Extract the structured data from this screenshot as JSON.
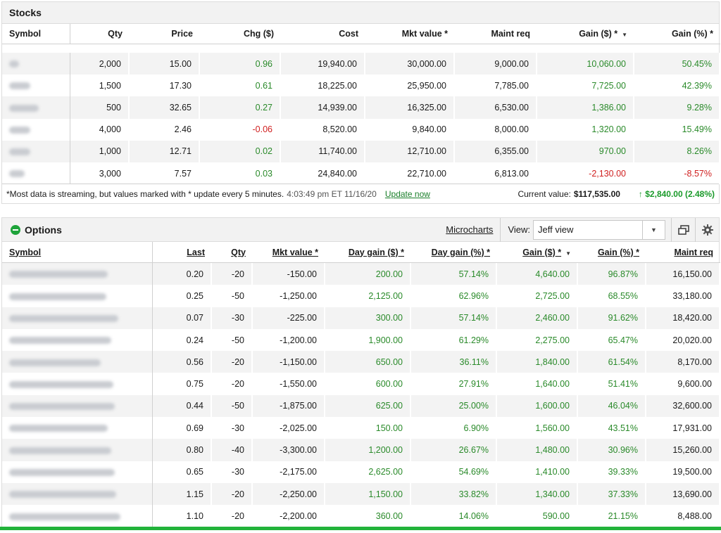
{
  "stocks": {
    "title": "Stocks",
    "columns": [
      "Symbol",
      "Qty",
      "Price",
      "Chg ($)",
      "Cost",
      "Mkt value *",
      "Maint req",
      "Gain ($) *",
      "Gain (%) *"
    ],
    "sort_caret": "▼",
    "rows": [
      {
        "qty": "2,000",
        "price": "15.00",
        "chg": "0.96",
        "chg_sign": "pos",
        "cost": "19,940.00",
        "mkt": "30,000.00",
        "maint": "9,000.00",
        "gain": "10,060.00",
        "gain_sign": "pos",
        "gainpct": "50.45%",
        "gainpct_sign": "pos"
      },
      {
        "qty": "1,500",
        "price": "17.30",
        "chg": "0.61",
        "chg_sign": "pos",
        "cost": "18,225.00",
        "mkt": "25,950.00",
        "maint": "7,785.00",
        "gain": "7,725.00",
        "gain_sign": "pos",
        "gainpct": "42.39%",
        "gainpct_sign": "pos"
      },
      {
        "qty": "500",
        "price": "32.65",
        "chg": "0.27",
        "chg_sign": "pos",
        "cost": "14,939.00",
        "mkt": "16,325.00",
        "maint": "6,530.00",
        "gain": "1,386.00",
        "gain_sign": "pos",
        "gainpct": "9.28%",
        "gainpct_sign": "pos"
      },
      {
        "qty": "4,000",
        "price": "2.46",
        "chg": "-0.06",
        "chg_sign": "neg",
        "cost": "8,520.00",
        "mkt": "9,840.00",
        "maint": "8,000.00",
        "gain": "1,320.00",
        "gain_sign": "pos",
        "gainpct": "15.49%",
        "gainpct_sign": "pos"
      },
      {
        "qty": "1,000",
        "price": "12.71",
        "chg": "0.02",
        "chg_sign": "pos",
        "cost": "11,740.00",
        "mkt": "12,710.00",
        "maint": "6,355.00",
        "gain": "970.00",
        "gain_sign": "pos",
        "gainpct": "8.26%",
        "gainpct_sign": "pos"
      },
      {
        "qty": "3,000",
        "price": "7.57",
        "chg": "0.03",
        "chg_sign": "pos",
        "cost": "24,840.00",
        "mkt": "22,710.00",
        "maint": "6,813.00",
        "gain": "-2,130.00",
        "gain_sign": "neg",
        "gainpct": "-8.57%",
        "gainpct_sign": "neg"
      }
    ],
    "footer": {
      "note": "*Most data is streaming, but values marked with * update every 5 minutes.",
      "timestamp": "4:03:49 pm ET 11/16/20",
      "update_link": "Update now",
      "current_value_label": "Current value:",
      "current_value": "$117,535.00",
      "total_gain": "↑ $2,840.00 (2.48%)"
    }
  },
  "options": {
    "title": "Options",
    "microcharts_label": "Microcharts",
    "view_label": "View:",
    "view_value": "Jeff view",
    "columns": [
      "Symbol",
      "Last",
      "Qty",
      "Mkt value *",
      "Day gain ($) *",
      "Day gain (%) *",
      "Gain ($) *",
      "Gain (%) *",
      "Maint req"
    ],
    "sort_caret": "▼",
    "rows": [
      {
        "last": "0.20",
        "qty": "-20",
        "mkt": "-150.00",
        "daygain": "200.00",
        "daygainpct": "57.14%",
        "gain": "4,640.00",
        "gainpct": "96.87%",
        "maint": "16,150.00"
      },
      {
        "last": "0.25",
        "qty": "-50",
        "mkt": "-1,250.00",
        "daygain": "2,125.00",
        "daygainpct": "62.96%",
        "gain": "2,725.00",
        "gainpct": "68.55%",
        "maint": "33,180.00"
      },
      {
        "last": "0.07",
        "qty": "-30",
        "mkt": "-225.00",
        "daygain": "300.00",
        "daygainpct": "57.14%",
        "gain": "2,460.00",
        "gainpct": "91.62%",
        "maint": "18,420.00"
      },
      {
        "last": "0.24",
        "qty": "-50",
        "mkt": "-1,200.00",
        "daygain": "1,900.00",
        "daygainpct": "61.29%",
        "gain": "2,275.00",
        "gainpct": "65.47%",
        "maint": "20,020.00"
      },
      {
        "last": "0.56",
        "qty": "-20",
        "mkt": "-1,150.00",
        "daygain": "650.00",
        "daygainpct": "36.11%",
        "gain": "1,840.00",
        "gainpct": "61.54%",
        "maint": "8,170.00"
      },
      {
        "last": "0.75",
        "qty": "-20",
        "mkt": "-1,550.00",
        "daygain": "600.00",
        "daygainpct": "27.91%",
        "gain": "1,640.00",
        "gainpct": "51.41%",
        "maint": "9,600.00"
      },
      {
        "last": "0.44",
        "qty": "-50",
        "mkt": "-1,875.00",
        "daygain": "625.00",
        "daygainpct": "25.00%",
        "gain": "1,600.00",
        "gainpct": "46.04%",
        "maint": "32,600.00"
      },
      {
        "last": "0.69",
        "qty": "-30",
        "mkt": "-2,025.00",
        "daygain": "150.00",
        "daygainpct": "6.90%",
        "gain": "1,560.00",
        "gainpct": "43.51%",
        "maint": "17,931.00"
      },
      {
        "last": "0.80",
        "qty": "-40",
        "mkt": "-3,300.00",
        "daygain": "1,200.00",
        "daygainpct": "26.67%",
        "gain": "1,480.00",
        "gainpct": "30.96%",
        "maint": "15,260.00"
      },
      {
        "last": "0.65",
        "qty": "-30",
        "mkt": "-2,175.00",
        "daygain": "2,625.00",
        "daygainpct": "54.69%",
        "gain": "1,410.00",
        "gainpct": "39.33%",
        "maint": "19,500.00"
      },
      {
        "last": "1.15",
        "qty": "-20",
        "mkt": "-2,250.00",
        "daygain": "1,150.00",
        "daygainpct": "33.82%",
        "gain": "1,340.00",
        "gainpct": "37.33%",
        "maint": "13,690.00"
      },
      {
        "last": "1.10",
        "qty": "-20",
        "mkt": "-2,200.00",
        "daygain": "360.00",
        "daygainpct": "14.06%",
        "gain": "590.00",
        "gainpct": "21.15%",
        "maint": "8,488.00"
      }
    ]
  },
  "colors": {
    "positive": "#2a8a2a",
    "negative": "#d02020",
    "accent_green": "#22b33a",
    "stripe": "#f3f3f3"
  }
}
